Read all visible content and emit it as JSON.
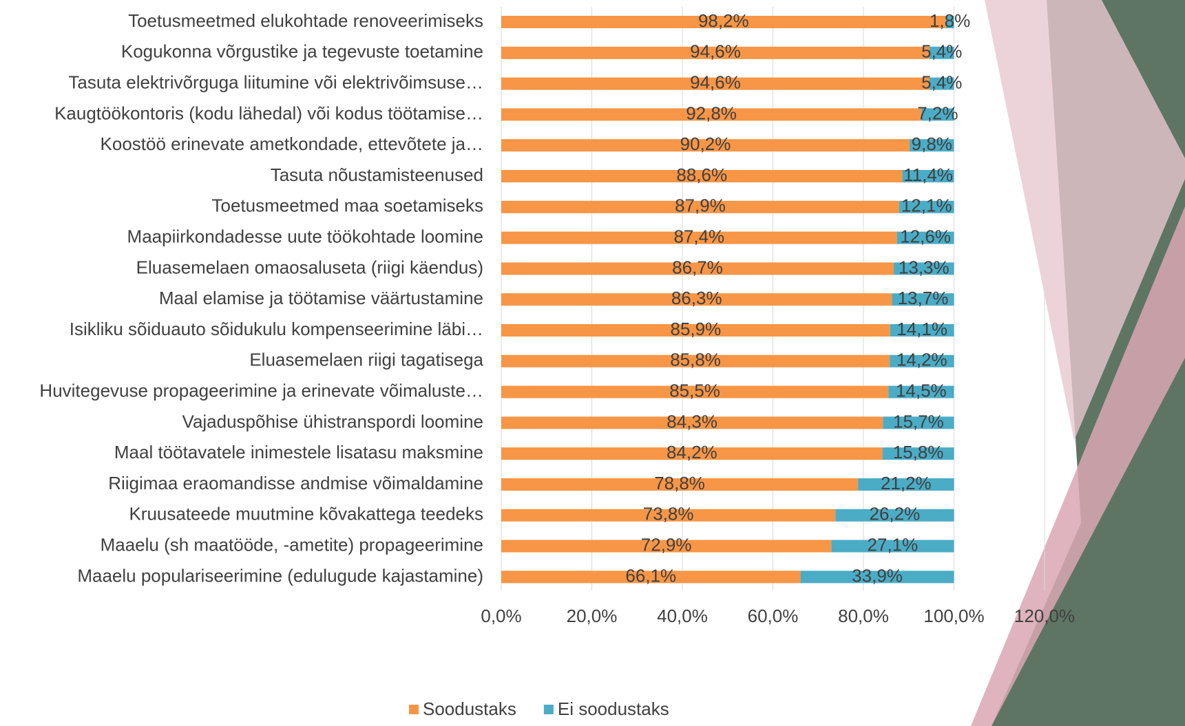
{
  "chart_data": {
    "type": "stacked-bar-horizontal",
    "categories": [
      "Toetusmeetmed elukohtade renoveerimiseks",
      "Kogukonna võrgustike ja tegevuste toetamine",
      "Tasuta elektrivõrguga liitumine või elektrivõimsuse…",
      "Kaugtöökontoris (kodu lähedal) või kodus töötamise…",
      "Koostöö erinevate ametkondade, ettevõtete ja…",
      "Tasuta nõustamisteenused",
      "Toetusmeetmed maa soetamiseks",
      "Maapiirkondadesse uute töökohtade loomine",
      "Eluasemelaen omaosaluseta (riigi käendus)",
      "Maal elamise ja töötamise väärtustamine",
      "Isikliku sõiduauto sõidukulu kompenseerimine läbi…",
      "Eluasemelaen riigi tagatisega",
      "Huvitegevuse propageerimine ja erinevate võimaluste…",
      "Vajaduspõhise ühistranspordi loomine",
      "Maal töötavatele inimestele lisatasu maksmine",
      "Riigimaa eraomandisse andmise võimaldamine",
      "Kruusateede muutmine kõvakattega teedeks",
      "Maaelu (sh maatööde, -ametite) propageerimine",
      "Maaelu populariseerimine (edulugude kajastamine)"
    ],
    "series": [
      {
        "name": "Soodustaks",
        "color": "#f79646",
        "values": [
          98.2,
          94.6,
          94.6,
          92.8,
          90.2,
          88.6,
          87.9,
          87.4,
          86.7,
          86.3,
          85.9,
          85.8,
          85.5,
          84.3,
          84.2,
          78.8,
          73.8,
          72.9,
          66.1
        ],
        "value_labels": [
          "98,2%",
          "94,6%",
          "94,6%",
          "92,8%",
          "90,2%",
          "88,6%",
          "87,9%",
          "87,4%",
          "86,7%",
          "86,3%",
          "85,9%",
          "85,8%",
          "85,5%",
          "84,3%",
          "84,2%",
          "78,8%",
          "73,8%",
          "72,9%",
          "66,1%"
        ]
      },
      {
        "name": "Ei soodustaks",
        "color": "#4bacc6",
        "values": [
          1.8,
          5.4,
          5.4,
          7.2,
          9.8,
          11.4,
          12.1,
          12.6,
          13.3,
          13.7,
          14.1,
          14.2,
          14.5,
          15.7,
          15.8,
          21.2,
          26.2,
          27.1,
          33.9
        ],
        "value_labels": [
          "1,8%",
          "5,4%",
          "5,4%",
          "7,2%",
          "9,8%",
          "11,4%",
          "12,1%",
          "12,6%",
          "13,3%",
          "13,7%",
          "14,1%",
          "14,2%",
          "14,5%",
          "15,7%",
          "15,8%",
          "21,2%",
          "26,2%",
          "27,1%",
          "33,9%"
        ]
      }
    ],
    "xlim": [
      0,
      120
    ],
    "xticks": [
      {
        "value": 0,
        "label": "0,0%"
      },
      {
        "value": 20,
        "label": "20,0%"
      },
      {
        "value": 40,
        "label": "40,0%"
      },
      {
        "value": 60,
        "label": "60,0%"
      },
      {
        "value": 80,
        "label": "80,0%"
      },
      {
        "value": 100,
        "label": "100,0%"
      },
      {
        "value": 120,
        "label": "120,0%"
      }
    ],
    "grid": true,
    "legend": "bottom"
  }
}
